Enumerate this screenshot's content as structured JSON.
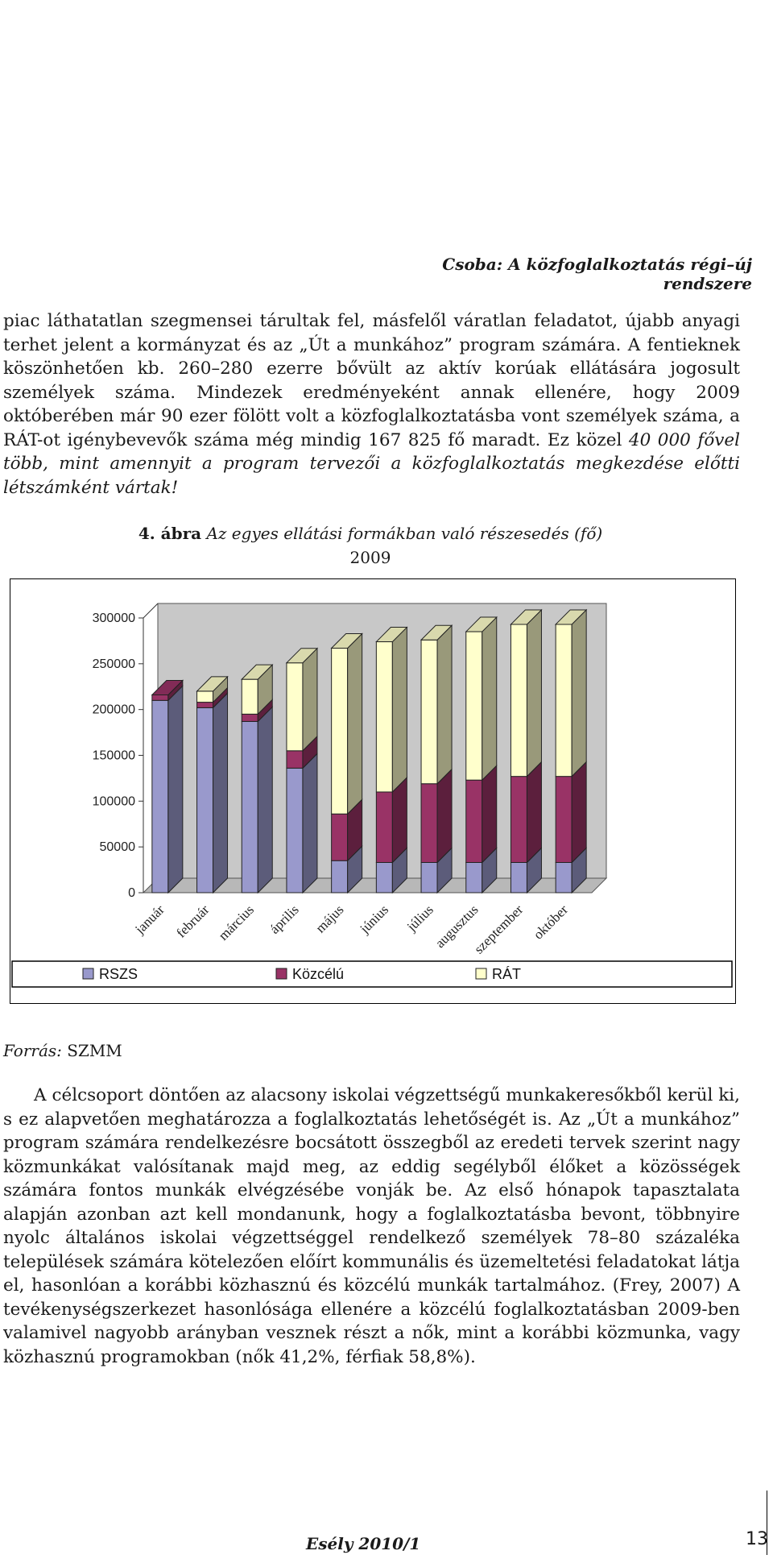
{
  "header": {
    "running_title": "Csoba: A közfoglalkoztatás régi–új rendszere"
  },
  "paragraph1": {
    "normal": "piac láthatatlan szegmensei tárultak fel, másfelől váratlan feladatot, újabb anyagi terhet jelent a kormányzat és az „Út a munkához” program számára. A fentieknek köszönhetően kb. 260–280 ezerre bővült az aktív korúak ellátására jogosult személyek száma. Mindezek eredményeként annak ellenére, hogy 2009 októberében már 90 ezer fölött volt a közfoglalkoztatásba vont személyek száma, a RÁT-ot igénybevevők száma még mindig 167 825 fő maradt. Ez közel ",
    "italic": "40 000 fővel több, mint amennyit a program tervezői a közfoglalkoztatás megkezdése előtti létszámként vártak!"
  },
  "figure": {
    "number": "4. ábra",
    "title": "Az egyes ellátási formákban való részesedés (fő)",
    "year": "2009"
  },
  "chart_data": {
    "type": "bar",
    "stacked": true,
    "style": "3d",
    "categories": [
      "január",
      "február",
      "március",
      "április",
      "május",
      "június",
      "július",
      "augusztus",
      "szeptember",
      "október"
    ],
    "series": [
      {
        "name": "RSZS",
        "color": "#9999cc",
        "values": [
          210000,
          202000,
          187000,
          136000,
          35000,
          33000,
          33000,
          33000,
          33000,
          33000
        ]
      },
      {
        "name": "Közcélú",
        "color": "#993366",
        "values": [
          6000,
          6000,
          8000,
          19000,
          51000,
          77000,
          86000,
          90000,
          94000,
          94000
        ]
      },
      {
        "name": "RÁT",
        "color": "#ffffcc",
        "values": [
          0,
          12000,
          38000,
          96000,
          181000,
          164000,
          157000,
          162000,
          166000,
          166000
        ]
      }
    ],
    "y_ticks": [
      "0",
      "50000",
      "100000",
      "150000",
      "200000",
      "250000",
      "300000"
    ],
    "ylim": [
      0,
      300000
    ],
    "grid": false,
    "legend_position": "bottom"
  },
  "source": {
    "label": "Forrás:",
    "value": "SZMM"
  },
  "paragraph2": "A célcsoport döntően az alacsony iskolai végzettségű munkakeresőkből kerül ki, s ez alapvetően meghatározza a foglalkoztatás lehetőségét is. Az „Út a munkához” program számára rendelkezésre bocsátott összegből az eredeti tervek szerint nagy közmunkákat valósítanak majd meg, az eddig segélyből élőket a közösségek számára fontos munkák elvégzésébe vonják be. Az első hónapok tapasztalata alapján azonban azt kell mondanunk, hogy a foglalkoztatásba bevont, többnyire nyolc általános iskolai végzettséggel rendelkező személyek 78–80 százaléka települések számára kötelezően előírt kommunális és üzemeltetési feladatokat látja el, hasonlóan a korábbi közhasznú és közcélú munkák tartalmához. (Frey, 2007) A tevékenységszerkezet hasonlósága ellenére a közcélú foglalkoztatásban 2009-ben valamivel nagyobb arányban vesznek részt a nők, mint a korábbi közmunka, vagy közhasznú programokban (nők 41,2%, férfiak 58,8%).",
  "footer": {
    "journal": "Esély 2010/1",
    "page_number": "13"
  }
}
